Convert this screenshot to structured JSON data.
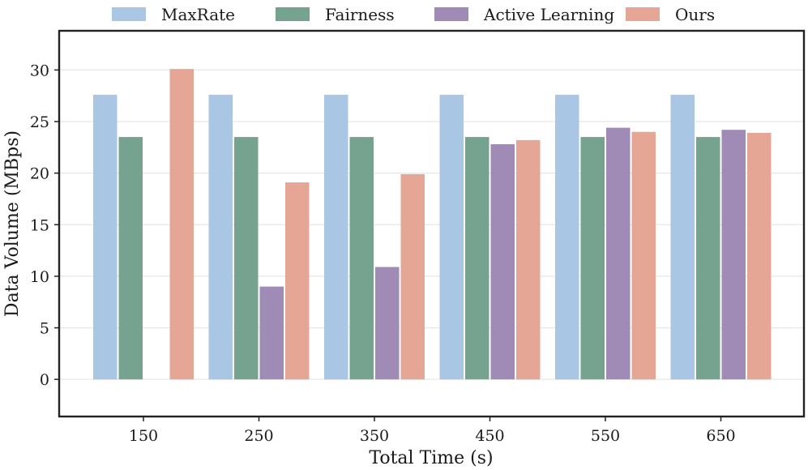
{
  "chart_data": {
    "type": "bar",
    "title": "",
    "xlabel": "Total Time (s)",
    "ylabel": "Data Volume (MBps)",
    "categories": [
      "150",
      "250",
      "350",
      "450",
      "550",
      "650"
    ],
    "ylim": [
      -3.6,
      33.8
    ],
    "yticks": [
      0,
      5,
      10,
      15,
      20,
      25,
      30
    ],
    "grid": "horizontal",
    "legend_position": "top-center",
    "series": [
      {
        "name": "MaxRate",
        "color": "#a9c6e4",
        "values": [
          27.6,
          27.6,
          27.6,
          27.6,
          27.6,
          27.6
        ]
      },
      {
        "name": "Fairness",
        "color": "#76a290",
        "values": [
          23.5,
          23.5,
          23.5,
          23.5,
          23.5,
          23.5
        ]
      },
      {
        "name": "Active Learning",
        "color": "#9f8bb6",
        "values": [
          0,
          9.0,
          10.9,
          22.8,
          24.4,
          24.2
        ]
      },
      {
        "name": "Ours",
        "color": "#e6a696",
        "values": [
          30.1,
          19.1,
          19.9,
          23.2,
          24.0,
          23.9
        ]
      }
    ]
  }
}
